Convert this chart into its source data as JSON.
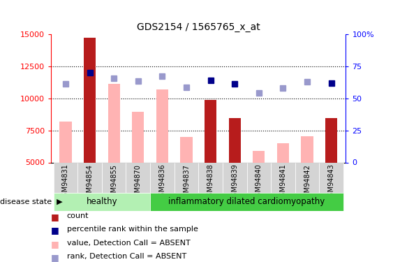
{
  "title": "GDS2154 / 1565765_x_at",
  "samples": [
    "GSM94831",
    "GSM94854",
    "GSM94855",
    "GSM94870",
    "GSM94836",
    "GSM94837",
    "GSM94838",
    "GSM94839",
    "GSM94840",
    "GSM94841",
    "GSM94842",
    "GSM94843"
  ],
  "count_present": [
    null,
    14700,
    null,
    null,
    null,
    null,
    9850,
    8450,
    null,
    null,
    null,
    8450
  ],
  "count_absent": [
    8200,
    null,
    11100,
    8950,
    10700,
    7000,
    null,
    null,
    5900,
    6500,
    7050,
    null
  ],
  "rank_present": [
    null,
    12000,
    null,
    null,
    null,
    null,
    11400,
    11100,
    null,
    null,
    null,
    11200
  ],
  "rank_absent": [
    11100,
    null,
    11550,
    11350,
    11700,
    10850,
    null,
    null,
    10400,
    10800,
    11300,
    null
  ],
  "healthy_count": 4,
  "disease_count": 8,
  "ylim_left": [
    5000,
    15000
  ],
  "ylim_right": [
    0,
    100
  ],
  "yticks_left": [
    5000,
    7500,
    10000,
    12500,
    15000
  ],
  "yticks_right": [
    0,
    25,
    50,
    75,
    100
  ],
  "color_count_present": "#b71c1c",
  "color_count_absent": "#ffb3b3",
  "color_rank_present": "#00008b",
  "color_rank_absent": "#9999cc",
  "bg_healthy": "#b3f0b3",
  "bg_disease": "#44cc44",
  "bar_width": 0.5,
  "legend_items": [
    {
      "color": "#b71c1c",
      "label": "count"
    },
    {
      "color": "#00008b",
      "label": "percentile rank within the sample"
    },
    {
      "color": "#ffb3b3",
      "label": "value, Detection Call = ABSENT"
    },
    {
      "color": "#9999cc",
      "label": "rank, Detection Call = ABSENT"
    }
  ]
}
